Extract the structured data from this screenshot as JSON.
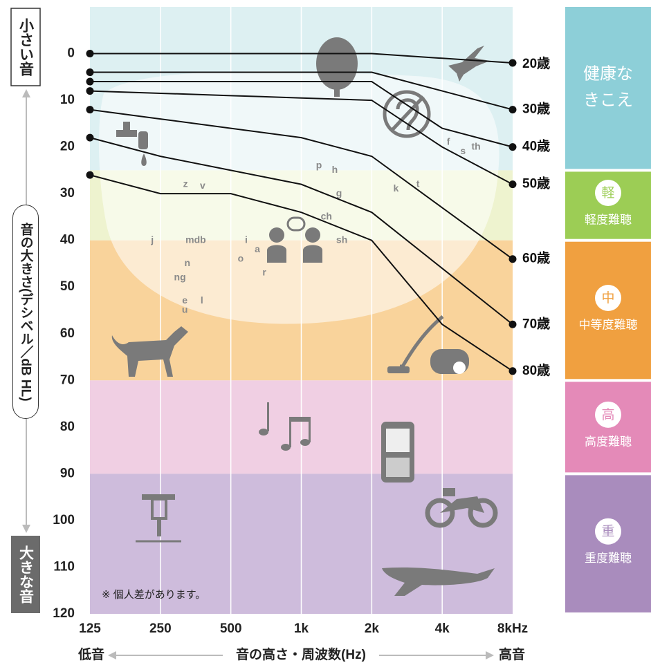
{
  "chart_data": {
    "type": "line",
    "x": [
      125,
      250,
      500,
      1000,
      2000,
      4000,
      8000
    ],
    "xlim": [
      125,
      8000
    ],
    "xticks": [
      125,
      250,
      500,
      {
        "value": 1000,
        "label": "1k"
      },
      {
        "value": 2000,
        "label": "2k"
      },
      {
        "value": 4000,
        "label": "4k"
      },
      {
        "value": 8000,
        "label": "8kHz"
      }
    ],
    "log_x": true,
    "ylim": [
      -10,
      120
    ],
    "yticks": [
      0,
      10,
      20,
      30,
      40,
      50,
      60,
      70,
      80,
      90,
      100,
      110,
      120
    ],
    "y_inverted": true,
    "grid": true,
    "series": [
      {
        "name": "20歳",
        "color": "#111111",
        "values": [
          0,
          0,
          0,
          0,
          0,
          1,
          2
        ]
      },
      {
        "name": "30歳",
        "color": "#111111",
        "values": [
          4,
          4,
          4,
          4,
          4,
          8,
          12
        ]
      },
      {
        "name": "40歳",
        "color": "#111111",
        "values": [
          6,
          6,
          6,
          6,
          6,
          16,
          20
        ]
      },
      {
        "name": "50歳",
        "color": "#111111",
        "values": [
          8,
          8.5,
          9,
          9.5,
          10,
          20,
          28
        ]
      },
      {
        "name": "60歳",
        "color": "#111111",
        "values": [
          12,
          14,
          16,
          18,
          22,
          33,
          44
        ]
      },
      {
        "name": "70歳",
        "color": "#111111",
        "values": [
          18,
          22,
          25,
          28,
          34,
          46,
          58
        ]
      },
      {
        "name": "80歳",
        "color": "#111111",
        "values": [
          26,
          30,
          30,
          34,
          40,
          58,
          68
        ]
      }
    ],
    "levels": [
      {
        "label": [
          "健康な",
          "きこえ"
        ],
        "range": [
          -10,
          25
        ],
        "band_color": "#ddf0f2",
        "color": "#8dcfd8"
      },
      {
        "badge": "軽",
        "label": [
          "軽度難聴"
        ],
        "range": [
          25,
          40
        ],
        "band_color": "#eef3cf",
        "color": "#9ccd55"
      },
      {
        "badge": "中",
        "label": [
          "中等度難聴"
        ],
        "range": [
          40,
          70
        ],
        "band_color": "#f9d39b",
        "color": "#f0a040"
      },
      {
        "badge": "高",
        "label": [
          "高度難聴"
        ],
        "range": [
          70,
          90
        ],
        "band_color": "#f0cfe3",
        "color": "#e48ab8"
      },
      {
        "badge": "重",
        "label": [
          "重度難聴"
        ],
        "range": [
          90,
          120
        ],
        "band_color": "#cebcdc",
        "color": "#a98cbd"
      }
    ],
    "phonemes": [
      {
        "text": "z",
        "x": 320,
        "y": 28
      },
      {
        "text": "v",
        "x": 379,
        "y": 28.4
      },
      {
        "text": "j",
        "x": 231,
        "y": 40
      },
      {
        "text": "mdb",
        "x": 354,
        "y": 40
      },
      {
        "text": "n",
        "x": 326,
        "y": 45
      },
      {
        "text": "ng",
        "x": 303,
        "y": 48
      },
      {
        "text": "e",
        "x": 318,
        "y": 53
      },
      {
        "text": "u",
        "x": 318,
        "y": 55
      },
      {
        "text": "l",
        "x": 376,
        "y": 53
      },
      {
        "text": "i",
        "x": 582,
        "y": 40
      },
      {
        "text": "a",
        "x": 649,
        "y": 42
      },
      {
        "text": "o",
        "x": 551,
        "y": 44
      },
      {
        "text": "r",
        "x": 695,
        "y": 47
      },
      {
        "text": "p",
        "x": 1190,
        "y": 24
      },
      {
        "text": "h",
        "x": 1390,
        "y": 25
      },
      {
        "text": "g",
        "x": 1450,
        "y": 30
      },
      {
        "text": "ch",
        "x": 1280,
        "y": 35
      },
      {
        "text": "sh",
        "x": 1490,
        "y": 40
      },
      {
        "text": "k",
        "x": 2540,
        "y": 29
      },
      {
        "text": "t",
        "x": 3150,
        "y": 28
      },
      {
        "text": "f",
        "x": 4250,
        "y": 19
      },
      {
        "text": "s",
        "x": 4910,
        "y": 21
      },
      {
        "text": "th",
        "x": 5580,
        "y": 20
      }
    ],
    "note": "※ 個人差があります。",
    "y_label_top": "小さい音",
    "y_label_bottom": "大きな音",
    "y_label": "音の大きさ(デシベル／dB HL)",
    "x_label": "音の高さ・周波数(Hz)",
    "x_label_left": "低音",
    "x_label_right": "高音"
  }
}
